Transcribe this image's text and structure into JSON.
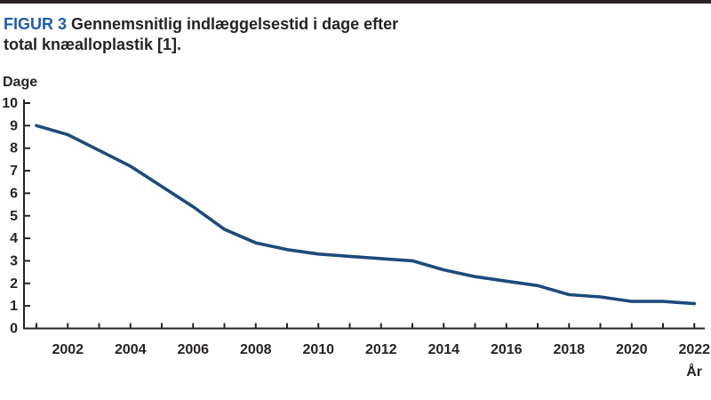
{
  "figure": {
    "label": "FIGUR 3",
    "title_line1": "Gennemsnitlig indlæggelsestid i dage efter",
    "title_line2": "total knæalloplastik [1]."
  },
  "axis_labels": {
    "y": "Dage",
    "x": "År"
  },
  "chart_data": {
    "type": "line",
    "title": "Gennemsnitlig indlæggelsestid i dage efter total knæalloplastik [1].",
    "xlabel": "År",
    "ylabel": "Dage",
    "x": [
      2001,
      2002,
      2003,
      2004,
      2005,
      2006,
      2007,
      2008,
      2009,
      2010,
      2011,
      2012,
      2013,
      2014,
      2015,
      2016,
      2017,
      2018,
      2019,
      2020,
      2021,
      2022
    ],
    "values": [
      9.0,
      8.6,
      7.9,
      7.2,
      6.3,
      5.4,
      4.4,
      3.8,
      3.5,
      3.3,
      3.2,
      3.1,
      3.0,
      2.6,
      2.3,
      2.1,
      1.9,
      1.5,
      1.4,
      1.2,
      1.2,
      1.1
    ],
    "ylim": [
      0,
      10
    ],
    "yticks": [
      0,
      1,
      2,
      3,
      4,
      5,
      6,
      7,
      8,
      9,
      10
    ],
    "xtick_labels": [
      2002,
      2004,
      2006,
      2008,
      2010,
      2012,
      2014,
      2016,
      2018,
      2020,
      2022
    ],
    "grid": false,
    "legend": "none",
    "line_color": "#1d4b7a",
    "axis_color": "#272324"
  },
  "colors": {
    "background": "#ffffff",
    "top_rule": "#2b2526",
    "text": "#272324",
    "figure_label_blue": "#1d5fa8",
    "line": "#1d4b7a"
  }
}
